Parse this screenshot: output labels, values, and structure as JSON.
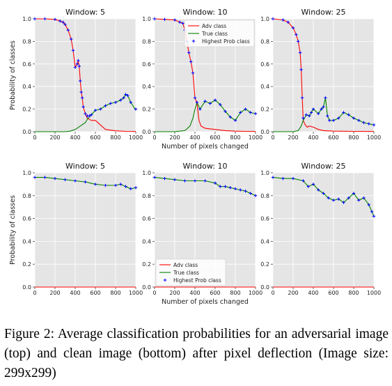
{
  "figure": {
    "caption": "Figure 2: Average classification probabilities for an adversarial image (top) and clean image (bottom) after pixel deflection (Image size: 299x299)",
    "xlabel": "Number of pixels changed",
    "ylabel": "Probability of classes",
    "xticks": [
      "0",
      "200",
      "400",
      "600",
      "800",
      "1000"
    ],
    "yticks": [
      "0.0",
      "0.2",
      "0.4",
      "0.6",
      "0.8",
      "1.0"
    ],
    "legend": [
      "Adv class",
      "True class",
      "Highest Prob class"
    ],
    "colors": {
      "adv": "#ff0000",
      "true": "#008000",
      "highest": "#0000ff",
      "panel_bg": "#e5e5e5",
      "grid": "#ffffff"
    }
  },
  "chart_data": [
    {
      "type": "line",
      "row": "top",
      "title": "Window: 5",
      "xlim": [
        0,
        1000
      ],
      "ylim": [
        0,
        1
      ],
      "series": [
        {
          "name": "Adv class",
          "x": [
            0,
            100,
            200,
            250,
            280,
            300,
            330,
            360,
            380,
            400,
            420,
            430,
            440,
            450,
            460,
            470,
            480,
            500,
            520,
            560,
            600,
            650,
            700,
            800,
            900,
            1000
          ],
          "y": [
            1.0,
            1.0,
            0.995,
            0.98,
            0.97,
            0.95,
            0.9,
            0.82,
            0.72,
            0.57,
            0.6,
            0.63,
            0.58,
            0.45,
            0.35,
            0.3,
            0.22,
            0.16,
            0.12,
            0.1,
            0.1,
            0.06,
            0.02,
            0.008,
            0.003,
            0.002
          ]
        },
        {
          "name": "True class",
          "x": [
            0,
            100,
            200,
            300,
            350,
            400,
            450,
            500,
            520,
            540,
            560,
            600,
            650,
            700,
            750,
            800,
            850,
            880,
            900,
            920,
            950,
            1000
          ],
          "y": [
            0.0,
            0.0,
            0.0,
            0.0,
            0.005,
            0.02,
            0.05,
            0.08,
            0.11,
            0.13,
            0.15,
            0.19,
            0.2,
            0.23,
            0.25,
            0.26,
            0.28,
            0.3,
            0.33,
            0.32,
            0.26,
            0.19
          ]
        },
        {
          "name": "Highest Prob class",
          "x": [
            0,
            100,
            200,
            250,
            280,
            300,
            330,
            360,
            380,
            400,
            420,
            430,
            440,
            450,
            460,
            470,
            480,
            500,
            520,
            540,
            560,
            600,
            650,
            700,
            750,
            800,
            850,
            880,
            900,
            920,
            950,
            1000
          ],
          "y": [
            1.0,
            1.0,
            0.995,
            0.98,
            0.97,
            0.95,
            0.9,
            0.82,
            0.72,
            0.57,
            0.6,
            0.63,
            0.58,
            0.45,
            0.35,
            0.3,
            0.22,
            0.16,
            0.14,
            0.14,
            0.15,
            0.19,
            0.2,
            0.23,
            0.25,
            0.26,
            0.28,
            0.3,
            0.33,
            0.32,
            0.26,
            0.2
          ]
        }
      ]
    },
    {
      "type": "line",
      "row": "top",
      "title": "Window: 10",
      "xlim": [
        0,
        1000
      ],
      "ylim": [
        0,
        1
      ],
      "series": [
        {
          "name": "Adv class",
          "x": [
            0,
            100,
            200,
            250,
            280,
            300,
            320,
            340,
            360,
            380,
            400,
            420,
            440,
            460,
            500,
            600,
            700,
            800,
            900,
            1000
          ],
          "y": [
            1.0,
            0.995,
            0.99,
            0.97,
            0.96,
            0.9,
            0.8,
            0.7,
            0.62,
            0.52,
            0.3,
            0.25,
            0.1,
            0.05,
            0.03,
            0.02,
            0.01,
            0.005,
            0.003,
            0.002
          ]
        },
        {
          "name": "True class",
          "x": [
            0,
            100,
            200,
            300,
            350,
            380,
            400,
            420,
            450,
            500,
            550,
            600,
            650,
            700,
            750,
            800,
            850,
            900,
            950,
            1000
          ],
          "y": [
            0.0,
            0.0,
            0.0,
            0.01,
            0.05,
            0.12,
            0.2,
            0.26,
            0.2,
            0.27,
            0.25,
            0.28,
            0.24,
            0.18,
            0.13,
            0.1,
            0.17,
            0.2,
            0.17,
            0.16
          ]
        },
        {
          "name": "Highest Prob class",
          "x": [
            0,
            100,
            200,
            250,
            280,
            300,
            320,
            340,
            360,
            380,
            400,
            420,
            450,
            500,
            550,
            600,
            650,
            700,
            750,
            800,
            850,
            900,
            950,
            1000
          ],
          "y": [
            1.0,
            0.995,
            0.99,
            0.97,
            0.96,
            0.9,
            0.8,
            0.7,
            0.62,
            0.52,
            0.3,
            0.26,
            0.2,
            0.27,
            0.25,
            0.28,
            0.24,
            0.18,
            0.13,
            0.1,
            0.17,
            0.2,
            0.17,
            0.16
          ]
        }
      ],
      "legend": "top-right"
    },
    {
      "type": "line",
      "row": "top",
      "title": "Window: 25",
      "xlim": [
        0,
        1000
      ],
      "ylim": [
        0,
        1
      ],
      "series": [
        {
          "name": "Adv class",
          "x": [
            0,
            100,
            150,
            200,
            230,
            250,
            270,
            280,
            290,
            300,
            320,
            340,
            360,
            400,
            450,
            500,
            600,
            800,
            1000
          ],
          "y": [
            1.0,
            0.99,
            0.97,
            0.92,
            0.86,
            0.8,
            0.7,
            0.55,
            0.3,
            0.1,
            0.06,
            0.04,
            0.05,
            0.04,
            0.02,
            0.01,
            0.005,
            0.003,
            0.002
          ]
        },
        {
          "name": "True class",
          "x": [
            0,
            100,
            200,
            250,
            280,
            300,
            330,
            360,
            380,
            400,
            450,
            480,
            500,
            520,
            540,
            560,
            600,
            650,
            700,
            750,
            800,
            850,
            900,
            950,
            1000
          ],
          "y": [
            0.0,
            0.0,
            0.0,
            0.01,
            0.05,
            0.1,
            0.15,
            0.14,
            0.17,
            0.2,
            0.16,
            0.2,
            0.22,
            0.3,
            0.14,
            0.1,
            0.1,
            0.12,
            0.17,
            0.15,
            0.12,
            0.1,
            0.08,
            0.07,
            0.06
          ]
        },
        {
          "name": "Highest Prob class",
          "x": [
            0,
            100,
            150,
            200,
            230,
            250,
            270,
            280,
            290,
            300,
            330,
            360,
            380,
            400,
            450,
            480,
            500,
            520,
            540,
            560,
            600,
            650,
            700,
            750,
            800,
            850,
            900,
            950,
            1000
          ],
          "y": [
            1.0,
            0.99,
            0.97,
            0.92,
            0.86,
            0.8,
            0.7,
            0.55,
            0.3,
            0.12,
            0.15,
            0.14,
            0.17,
            0.2,
            0.16,
            0.2,
            0.22,
            0.3,
            0.14,
            0.1,
            0.1,
            0.12,
            0.17,
            0.15,
            0.12,
            0.1,
            0.08,
            0.07,
            0.06
          ]
        }
      ]
    },
    {
      "type": "line",
      "row": "bottom",
      "title": "Window: 5",
      "xlim": [
        0,
        1000
      ],
      "ylim": [
        0,
        1
      ],
      "series": [
        {
          "name": "Adv class",
          "x": [
            0,
            1000
          ],
          "y": [
            0.0,
            0.0
          ]
        },
        {
          "name": "True class",
          "x": [
            0,
            100,
            200,
            300,
            400,
            500,
            600,
            700,
            800,
            850,
            900,
            950,
            1000
          ],
          "y": [
            0.96,
            0.96,
            0.95,
            0.94,
            0.93,
            0.92,
            0.9,
            0.89,
            0.89,
            0.9,
            0.88,
            0.86,
            0.87
          ]
        },
        {
          "name": "Highest Prob class",
          "x": [
            0,
            100,
            200,
            300,
            400,
            500,
            600,
            700,
            800,
            850,
            900,
            950,
            1000
          ],
          "y": [
            0.96,
            0.96,
            0.95,
            0.94,
            0.93,
            0.92,
            0.9,
            0.89,
            0.89,
            0.9,
            0.88,
            0.86,
            0.87
          ]
        }
      ]
    },
    {
      "type": "line",
      "row": "bottom",
      "title": "Window: 10",
      "xlim": [
        0,
        1000
      ],
      "ylim": [
        0,
        1
      ],
      "series": [
        {
          "name": "Adv class",
          "x": [
            0,
            1000
          ],
          "y": [
            0.0,
            0.0
          ]
        },
        {
          "name": "True class",
          "x": [
            0,
            100,
            200,
            300,
            400,
            500,
            600,
            650,
            700,
            750,
            800,
            850,
            900,
            950,
            1000
          ],
          "y": [
            0.96,
            0.95,
            0.94,
            0.93,
            0.93,
            0.93,
            0.91,
            0.88,
            0.88,
            0.87,
            0.86,
            0.85,
            0.84,
            0.82,
            0.8
          ]
        },
        {
          "name": "Highest Prob class",
          "x": [
            0,
            100,
            200,
            300,
            400,
            500,
            600,
            650,
            700,
            750,
            800,
            850,
            900,
            950,
            1000
          ],
          "y": [
            0.96,
            0.95,
            0.94,
            0.93,
            0.93,
            0.93,
            0.91,
            0.88,
            0.88,
            0.87,
            0.86,
            0.85,
            0.84,
            0.82,
            0.8
          ]
        }
      ],
      "legend": "bottom-left"
    },
    {
      "type": "line",
      "row": "bottom",
      "title": "Window: 25",
      "xlim": [
        0,
        1000
      ],
      "ylim": [
        0,
        1
      ],
      "series": [
        {
          "name": "Adv class",
          "x": [
            0,
            1000
          ],
          "y": [
            0.0,
            0.0
          ]
        },
        {
          "name": "True class",
          "x": [
            0,
            100,
            200,
            300,
            350,
            400,
            450,
            500,
            550,
            600,
            650,
            700,
            750,
            800,
            850,
            900,
            950,
            980,
            1000
          ],
          "y": [
            0.96,
            0.95,
            0.95,
            0.93,
            0.88,
            0.9,
            0.85,
            0.82,
            0.78,
            0.76,
            0.77,
            0.74,
            0.78,
            0.82,
            0.76,
            0.78,
            0.72,
            0.66,
            0.62
          ]
        },
        {
          "name": "Highest Prob class",
          "x": [
            0,
            100,
            200,
            300,
            350,
            400,
            450,
            500,
            550,
            600,
            650,
            700,
            750,
            800,
            850,
            900,
            950,
            980,
            1000
          ],
          "y": [
            0.96,
            0.95,
            0.95,
            0.93,
            0.88,
            0.9,
            0.85,
            0.82,
            0.78,
            0.76,
            0.77,
            0.74,
            0.78,
            0.82,
            0.76,
            0.78,
            0.72,
            0.66,
            0.62
          ]
        }
      ]
    }
  ]
}
